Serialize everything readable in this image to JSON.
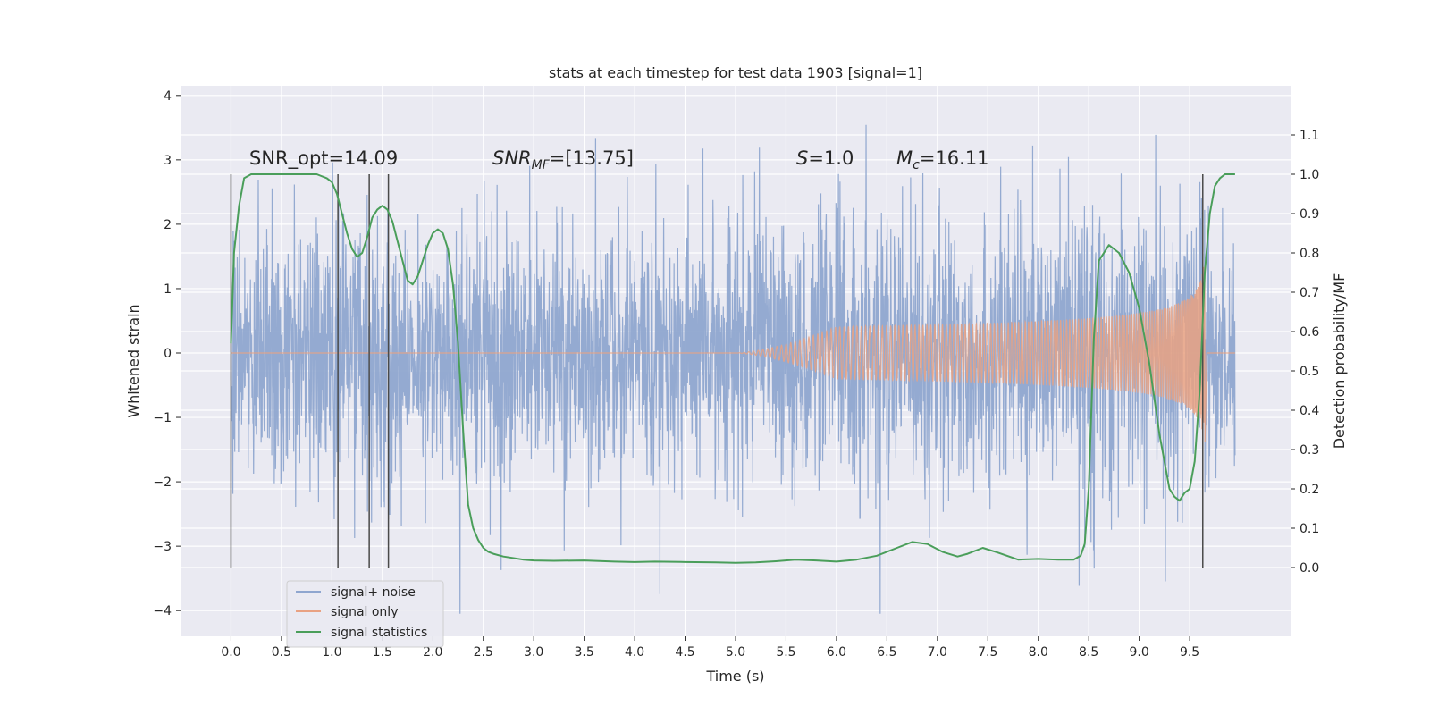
{
  "chart_data": {
    "type": "line",
    "title": "stats at each timestep for test data 1903 [signal=1]",
    "xlabel": "Time (s)",
    "ylabel": "Whitened strain",
    "ylabel_right": "Detection probability/MF",
    "xlim": [
      -0.5,
      10.5
    ],
    "ylim": [
      -4.4,
      4.15
    ],
    "ylim_right": [
      -0.175,
      1.225
    ],
    "x_ticks": [
      "0.0",
      "0.5",
      "1.0",
      "1.5",
      "2.0",
      "2.5",
      "3.0",
      "3.5",
      "4.0",
      "4.5",
      "5.0",
      "5.5",
      "6.0",
      "6.5",
      "7.0",
      "7.5",
      "8.0",
      "8.5",
      "9.0",
      "9.5"
    ],
    "y_ticks": [
      "4",
      "3",
      "2",
      "1",
      "0",
      "−1",
      "−2",
      "−3",
      "−4"
    ],
    "y_right_ticks": [
      "1.1",
      "1.0",
      "0.9",
      "0.8",
      "0.7",
      "0.6",
      "0.5",
      "0.4",
      "0.3",
      "0.2",
      "0.1",
      "0.0"
    ],
    "grid": true,
    "legend_position": "lower-left",
    "annotations": {
      "snr_opt": "SNR_opt=14.09",
      "snr_mf_main": "SNR",
      "snr_mf_sub": "MF",
      "snr_mf_rest": "=[13.75]",
      "s_main": "S",
      "s_rest": "=1.0",
      "mc_main": "M",
      "mc_sub": "c",
      "mc_rest": "=16.11"
    },
    "vertical_markers_x": [
      0.0,
      1.06,
      1.37,
      1.56,
      9.63
    ],
    "series": [
      {
        "name": "signal+ noise",
        "color": "#8fa6cf",
        "axis": "left",
        "description_range": [
          -4.05,
          3.8
        ]
      },
      {
        "name": "signal only",
        "color": "#e9a283",
        "axis": "left",
        "chirp_peak_time": 9.65,
        "max_amplitude": 1.5
      },
      {
        "name": "signal statistics",
        "color": "#4a9e5a",
        "axis": "right",
        "x": [
          0.0,
          0.03,
          0.08,
          0.13,
          0.2,
          0.3,
          0.5,
          0.7,
          0.85,
          0.95,
          1.0,
          1.05,
          1.1,
          1.15,
          1.2,
          1.25,
          1.3,
          1.35,
          1.4,
          1.45,
          1.5,
          1.55,
          1.6,
          1.65,
          1.7,
          1.75,
          1.8,
          1.85,
          1.9,
          1.95,
          2.0,
          2.05,
          2.1,
          2.15,
          2.2,
          2.25,
          2.3,
          2.35,
          2.4,
          2.45,
          2.5,
          2.55,
          2.6,
          2.7,
          2.8,
          2.9,
          3.0,
          3.2,
          3.5,
          3.8,
          4.0,
          4.2,
          4.5,
          4.8,
          5.0,
          5.2,
          5.4,
          5.6,
          5.8,
          6.0,
          6.2,
          6.4,
          6.6,
          6.75,
          6.9,
          7.05,
          7.2,
          7.3,
          7.45,
          7.6,
          7.8,
          8.0,
          8.2,
          8.35,
          8.42,
          8.46,
          8.5,
          8.55,
          8.6,
          8.7,
          8.8,
          8.9,
          9.0,
          9.1,
          9.2,
          9.3,
          9.35,
          9.4,
          9.45,
          9.5,
          9.55,
          9.6,
          9.65,
          9.7,
          9.75,
          9.8,
          9.85,
          9.9,
          9.95
        ],
        "values": [
          0.57,
          0.8,
          0.92,
          0.99,
          1.0,
          1.0,
          1.0,
          1.0,
          1.0,
          0.99,
          0.98,
          0.95,
          0.9,
          0.85,
          0.81,
          0.79,
          0.8,
          0.84,
          0.89,
          0.91,
          0.92,
          0.91,
          0.88,
          0.83,
          0.78,
          0.73,
          0.72,
          0.74,
          0.78,
          0.82,
          0.85,
          0.86,
          0.85,
          0.81,
          0.72,
          0.57,
          0.35,
          0.16,
          0.1,
          0.07,
          0.05,
          0.04,
          0.035,
          0.028,
          0.024,
          0.02,
          0.018,
          0.017,
          0.018,
          0.015,
          0.014,
          0.015,
          0.014,
          0.013,
          0.012,
          0.013,
          0.016,
          0.02,
          0.018,
          0.015,
          0.02,
          0.03,
          0.05,
          0.065,
          0.06,
          0.04,
          0.028,
          0.035,
          0.05,
          0.038,
          0.02,
          0.022,
          0.02,
          0.02,
          0.03,
          0.06,
          0.2,
          0.58,
          0.78,
          0.82,
          0.8,
          0.75,
          0.66,
          0.52,
          0.34,
          0.2,
          0.18,
          0.17,
          0.19,
          0.2,
          0.27,
          0.45,
          0.75,
          0.9,
          0.97,
          0.99,
          1.0,
          1.0,
          1.0
        ]
      }
    ]
  }
}
